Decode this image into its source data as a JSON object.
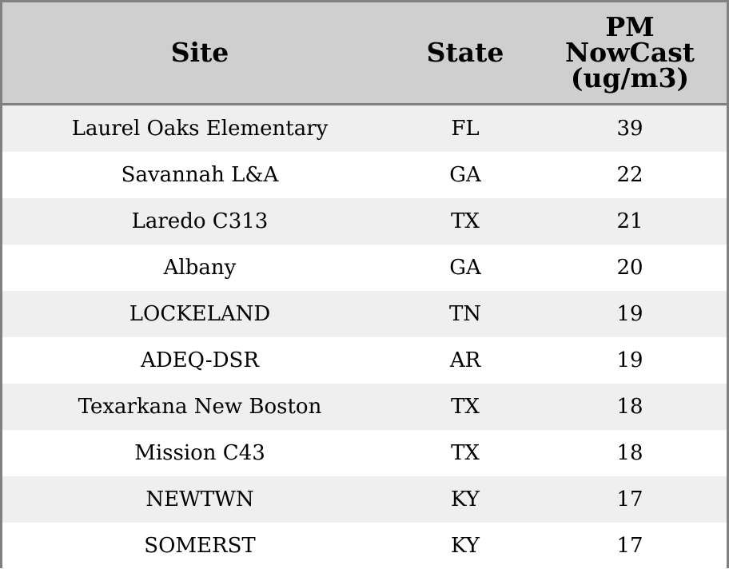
{
  "chart_data": {
    "type": "table",
    "columns": [
      "Site",
      "State",
      "PM NowCast (ug/m3)"
    ],
    "column_lines": [
      [
        "Site"
      ],
      [
        "State"
      ],
      [
        "PM",
        "NowCast",
        "(ug/m3)"
      ]
    ],
    "rows": [
      [
        "Laurel Oaks Elementary",
        "FL",
        "39"
      ],
      [
        "Savannah L&A",
        "GA",
        "22"
      ],
      [
        "Laredo C313",
        "TX",
        "21"
      ],
      [
        "Albany",
        "GA",
        "20"
      ],
      [
        "LOCKELAND",
        "TN",
        "19"
      ],
      [
        "ADEQ-DSR",
        "AR",
        "19"
      ],
      [
        "Texarkana New Boston",
        "TX",
        "18"
      ],
      [
        "Mission C43",
        "TX",
        "18"
      ],
      [
        "NEWTWN",
        "KY",
        "17"
      ],
      [
        "SOMERST",
        "KY",
        "17"
      ]
    ],
    "colors": {
      "header_background": "#cfcfcf",
      "row_stripe": "#efefef",
      "row_background": "#ffffff",
      "border": "#808080"
    }
  }
}
